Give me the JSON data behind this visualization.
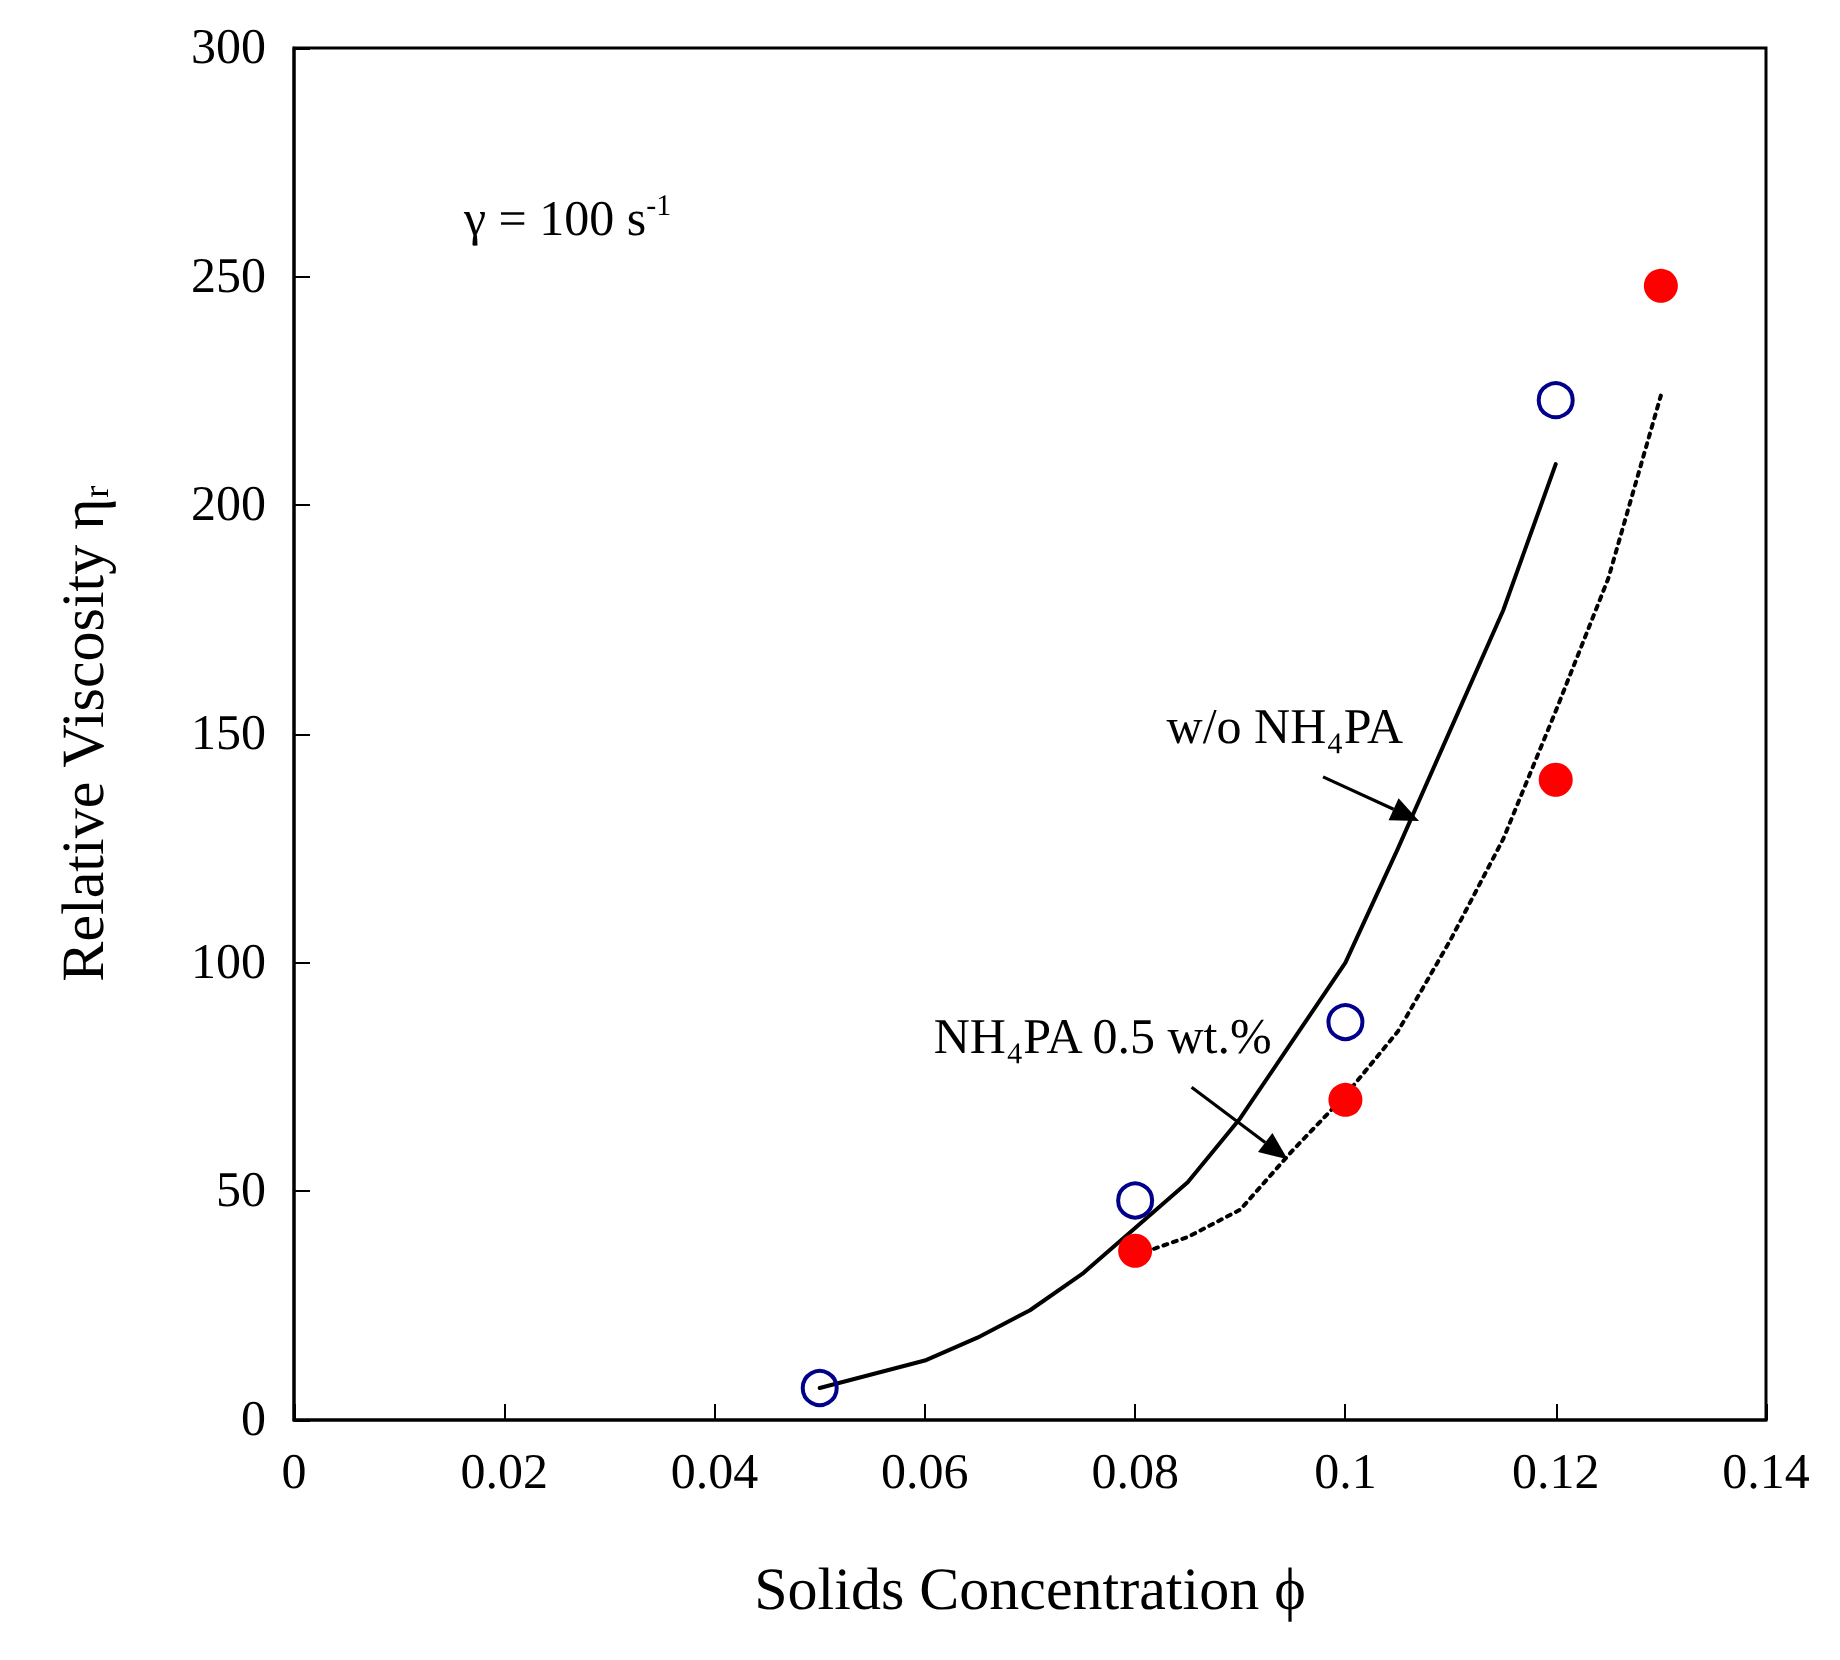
{
  "chart_data": {
    "type": "scatter",
    "xlabel": "Solids Concentration ϕ",
    "ylabel": "Relative Viscosity η$_{r}$",
    "xlim": [
      0,
      0.14
    ],
    "xticks": [
      0,
      0.02,
      0.04,
      0.06,
      0.08,
      0.1,
      0.12,
      0.14
    ],
    "ylim": [
      0,
      300
    ],
    "yticks": [
      0,
      50,
      100,
      150,
      200,
      250,
      300
    ],
    "grid": false,
    "marker": "circle",
    "annotations": [
      "γ = 100 s$^{-1}$",
      {
        "text": "w/o NH₄PA",
        "x": 0.107,
        "y": 131
      },
      {
        "text": "NH₄PA 0.5 wt.%",
        "x": 0.0945,
        "y": 57
      }
    ],
    "series": [
      {
        "color": "#00008b",
        "x": [
          0.05,
          0.08,
          0.1,
          0.12
        ],
        "values": [
          7,
          48,
          87,
          223
        ]
      },
      {
        "color": "#ff0000",
        "x": [
          0.08,
          0.1,
          0.12,
          0.13
        ],
        "values": [
          37,
          70,
          140,
          248
        ]
      },
      {
        "type": "line",
        "color": "#000000",
        "marker": "none",
        "line_style": "solid",
        "x": [
          0.05,
          0.055,
          0.06,
          0.065,
          0.07,
          0.075,
          0.08,
          0.085,
          0.09,
          0.095,
          0.1,
          0.105,
          0.11,
          0.115,
          0.12
        ],
        "values": [
          7,
          10,
          13,
          18,
          24,
          32,
          42,
          52,
          66,
          83,
          100,
          125,
          151,
          177,
          209
        ]
      },
      {
        "type": "line",
        "color": "#000000",
        "marker": "none",
        "line_style": "dotted",
        "x": [
          0.08,
          0.085,
          0.09,
          0.095,
          0.1,
          0.105,
          0.11,
          0.115,
          0.12,
          0.125,
          0.13
        ],
        "values": [
          36,
          40,
          46,
          59,
          71,
          85,
          105,
          127,
          155,
          184,
          224
        ]
      }
    ]
  }
}
